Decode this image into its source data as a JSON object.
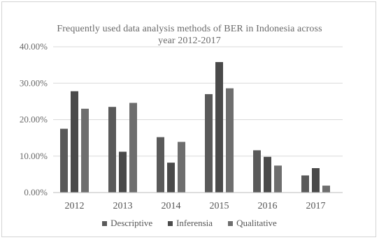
{
  "chart_data": {
    "type": "bar",
    "title_lines": [
      "Frequently used data analysis methods of BER in Indonesia across",
      "year 2012-2017"
    ],
    "categories": [
      "2012",
      "2013",
      "2014",
      "2015",
      "2016",
      "2017"
    ],
    "series": [
      {
        "name": "Descriptive",
        "color": "#5a5a5a",
        "values": [
          17.5,
          23.5,
          15.2,
          27.0,
          11.6,
          4.7
        ]
      },
      {
        "name": "Inferensia",
        "color": "#4a4a4a",
        "values": [
          27.8,
          11.2,
          8.2,
          35.8,
          9.8,
          6.7
        ]
      },
      {
        "name": "Qualitative",
        "color": "#6e6e6e",
        "values": [
          23.0,
          24.6,
          13.9,
          28.6,
          7.4,
          1.9
        ]
      }
    ],
    "y_ticks": [
      "0.00%",
      "10.00%",
      "20.00%",
      "30.00%",
      "40.00%"
    ],
    "ylim": [
      0,
      40
    ],
    "grid": true,
    "legend_position": "bottom"
  }
}
